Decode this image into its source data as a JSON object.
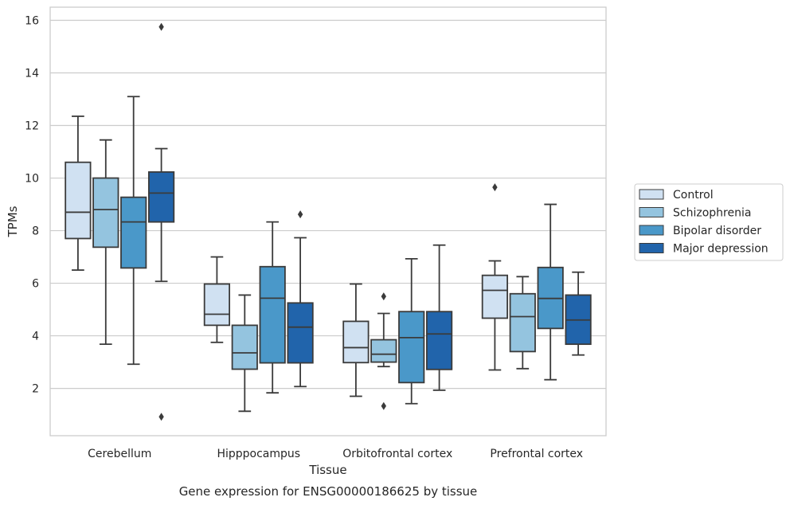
{
  "chart_data": {
    "type": "box",
    "title": "",
    "caption": "Gene expression for ENSG00000186625 by tissue",
    "xlabel": "Tissue",
    "ylabel": "TPMs",
    "ylim": [
      0.2,
      16.5
    ],
    "yticks": [
      2,
      4,
      6,
      8,
      10,
      12,
      14,
      16
    ],
    "grid": true,
    "legend_position": "right",
    "categories": [
      "Cerebellum",
      "Hipppocampus",
      "Orbitofrontal cortex",
      "Prefrontal cortex"
    ],
    "series": [
      {
        "name": "Control",
        "color": "#d0e1f2",
        "boxes": [
          {
            "whislo": 6.5,
            "q1": 7.7,
            "med": 8.7,
            "q3": 10.6,
            "whishi": 12.35,
            "fliers": []
          },
          {
            "whislo": 3.75,
            "q1": 4.4,
            "med": 4.82,
            "q3": 5.97,
            "whishi": 7.0,
            "fliers": []
          },
          {
            "whislo": 1.7,
            "q1": 2.98,
            "med": 3.55,
            "q3": 4.55,
            "whishi": 5.97,
            "fliers": []
          },
          {
            "whislo": 2.7,
            "q1": 4.67,
            "med": 5.73,
            "q3": 6.3,
            "whishi": 6.85,
            "fliers": [
              9.65
            ]
          }
        ]
      },
      {
        "name": "Schizophrenia",
        "color": "#94c4df",
        "boxes": [
          {
            "whislo": 3.68,
            "q1": 7.37,
            "med": 8.8,
            "q3": 10.0,
            "whishi": 11.45,
            "fliers": []
          },
          {
            "whislo": 1.13,
            "q1": 2.73,
            "med": 3.35,
            "q3": 4.4,
            "whishi": 5.55,
            "fliers": []
          },
          {
            "whislo": 2.83,
            "q1": 3.0,
            "med": 3.3,
            "q3": 3.85,
            "whishi": 4.85,
            "fliers": [
              5.5,
              1.33
            ]
          },
          {
            "whislo": 2.75,
            "q1": 3.4,
            "med": 4.73,
            "q3": 5.6,
            "whishi": 6.25,
            "fliers": []
          }
        ]
      },
      {
        "name": "Bipolar disorder",
        "color": "#4a98c9",
        "boxes": [
          {
            "whislo": 2.92,
            "q1": 6.58,
            "med": 8.33,
            "q3": 9.27,
            "whishi": 13.1,
            "fliers": []
          },
          {
            "whislo": 1.83,
            "q1": 2.97,
            "med": 5.43,
            "q3": 6.63,
            "whishi": 8.33,
            "fliers": []
          },
          {
            "whislo": 1.42,
            "q1": 2.22,
            "med": 3.93,
            "q3": 4.92,
            "whishi": 6.93,
            "fliers": []
          },
          {
            "whislo": 2.33,
            "q1": 4.28,
            "med": 5.42,
            "q3": 6.6,
            "whishi": 9.0,
            "fliers": []
          }
        ]
      },
      {
        "name": "Major depression",
        "color": "#2164ab",
        "boxes": [
          {
            "whislo": 6.07,
            "q1": 8.33,
            "med": 9.43,
            "q3": 10.23,
            "whishi": 11.12,
            "fliers": [
              15.75,
              0.92
            ]
          },
          {
            "whislo": 2.07,
            "q1": 2.97,
            "med": 4.33,
            "q3": 5.25,
            "whishi": 7.73,
            "fliers": [
              8.62
            ]
          },
          {
            "whislo": 1.93,
            "q1": 2.72,
            "med": 4.07,
            "q3": 4.92,
            "whishi": 7.45,
            "fliers": []
          },
          {
            "whislo": 3.27,
            "q1": 3.68,
            "med": 4.6,
            "q3": 5.55,
            "whishi": 6.42,
            "fliers": []
          }
        ]
      }
    ]
  }
}
